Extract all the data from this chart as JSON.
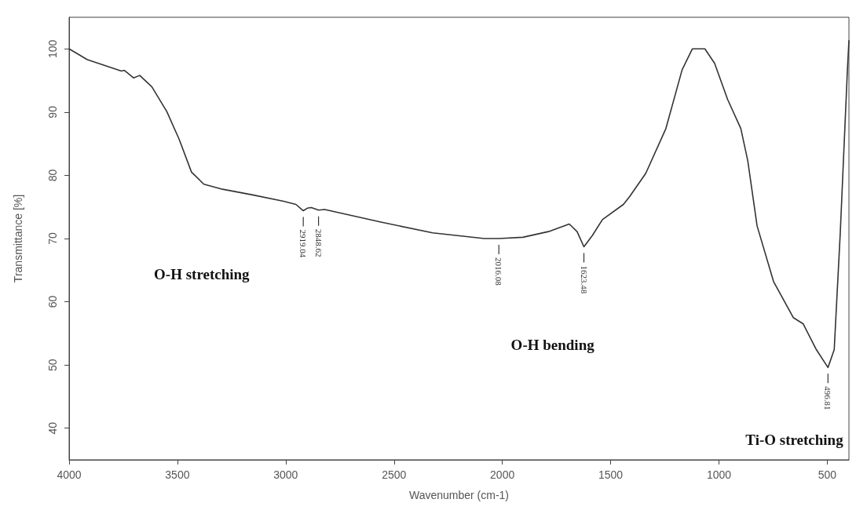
{
  "chart_data": {
    "type": "line",
    "xlabel": "Wavenumber (cm-1)",
    "ylabel": "Transmittance [%]",
    "xlim": [
      4000,
      400
    ],
    "xticks": [
      4000,
      3500,
      3000,
      2500,
      2000,
      1500,
      1000,
      500
    ],
    "ylim": [
      35,
      105
    ],
    "yticks": [
      40,
      50,
      60,
      70,
      80,
      90,
      100
    ],
    "grid": false,
    "marker": "none",
    "line_style": "solid",
    "series": [
      {
        "color": "#333333",
        "x": [
          4000,
          3916,
          3759,
          3745,
          3702,
          3674,
          3618,
          3549,
          3492,
          3435,
          3378,
          3292,
          3153,
          3010,
          2953,
          2919.04,
          2900,
          2882,
          2848.62,
          2820,
          2561,
          2322,
          2083,
          2016.08,
          1905,
          1787,
          1691,
          1655,
          1623.48,
          1584,
          1538,
          1441,
          1413,
          1338,
          1245,
          1170,
          1123,
          1065,
          1020,
          960,
          899,
          867,
          824,
          748,
          657,
          611,
          550,
          496.81,
          468,
          440,
          407,
          400
        ],
        "values": [
          100,
          98.3,
          96.5,
          96.6,
          95.4,
          95.8,
          94.0,
          90.1,
          85.7,
          80.5,
          78.6,
          77.8,
          76.9,
          75.9,
          75.4,
          74.4,
          74.8,
          74.9,
          74.5,
          74.6,
          72.6,
          70.9,
          70.0,
          70.0,
          70.2,
          71.1,
          72.3,
          71.1,
          68.7,
          70.5,
          73.0,
          75.4,
          76.6,
          80.3,
          87.4,
          96.7,
          100.0,
          100.0,
          97.7,
          92.0,
          87.4,
          82.3,
          72.0,
          63.2,
          57.5,
          56.5,
          52.4,
          49.6,
          52.4,
          70.9,
          96.7,
          101.3
        ]
      }
    ],
    "annotations": [
      {
        "text": "2919.04",
        "x": 2919.04,
        "y": 74.4
      },
      {
        "text": "2848.62",
        "x": 2848.62,
        "y": 74.5
      },
      {
        "text": "2016.08",
        "x": 2016.08,
        "y": 70.0
      },
      {
        "text": "1623.48",
        "x": 1623.48,
        "y": 68.7
      },
      {
        "text": "496.81",
        "x": 496.81,
        "y": 49.6
      },
      "O-H stretching",
      "O-H bending",
      "Ti-O stretching"
    ]
  }
}
